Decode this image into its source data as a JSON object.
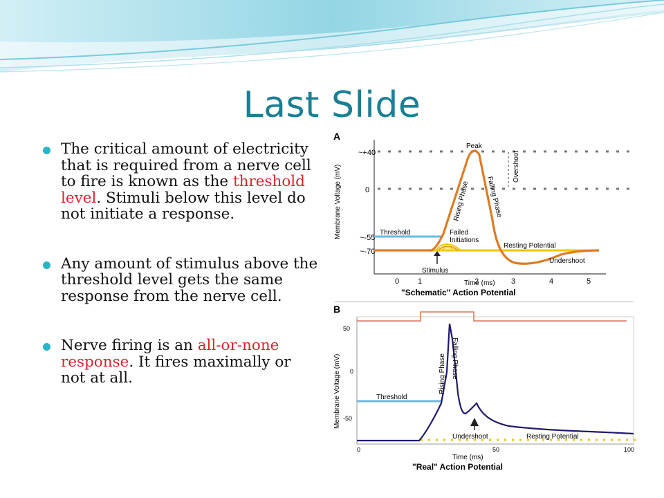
{
  "slide": {
    "title": "Last Slide"
  },
  "bullets": [
    {
      "parts": [
        {
          "t": "The critical amount of electricity that is required from a nerve cell to fire is known as the ",
          "hl": false
        },
        {
          "t": "threshold level",
          "hl": true
        },
        {
          "t": ". Stimuli below this level do not initiate a response.",
          "hl": false
        }
      ]
    },
    {
      "parts": [
        {
          "t": "Any amount of stimulus above the threshold level gets the same response from the nerve cell.",
          "hl": false
        }
      ]
    },
    {
      "parts": [
        {
          "t": "Nerve firing is an ",
          "hl": false
        },
        {
          "t": "all-or-none response",
          "hl": true
        },
        {
          "t": ".  It fires maximally or not at all.",
          "hl": false
        }
      ]
    }
  ],
  "colors": {
    "title": "#1a7f95",
    "bullet": "#2bb3c8",
    "highlight": "#e0212b",
    "schematic_trace": "#e07b20",
    "real_trace": "#1f1a6e",
    "threshold": "#6fb6e0",
    "resting": "#f2c40c"
  },
  "figureA": {
    "panel_label": "A",
    "ylabel": "Membrane Voltage (mV)",
    "xlabel": "Time (ms)",
    "caption": "\"Schematic\" Action Potential",
    "yticks": [
      "~+40",
      "0",
      "~-55",
      "~-70"
    ],
    "xticks": [
      "0",
      "1",
      "2",
      "3",
      "4",
      "5"
    ],
    "labels": {
      "peak": "Peak",
      "rising": "Rising Phase",
      "falling": "Falling Phase",
      "overshoot": "Overshoot",
      "threshold": "Threshold",
      "failed": "Failed",
      "initiations": "Initiations",
      "resting": "Resting Potential",
      "undershoot": "Undershoot",
      "stimulus": "Stimulus"
    }
  },
  "figureB": {
    "panel_label": "B",
    "ylabel": "Membrane Voltage (mV)",
    "xlabel": "Time (ms)",
    "caption": "\"Real\" Action Potential",
    "yticks": [
      "50",
      "0",
      "-50"
    ],
    "xticks": [
      "0",
      "50",
      "100"
    ],
    "labels": {
      "rising": "Rising Phase",
      "falling": "Falling Phase",
      "threshold": "Threshold",
      "undershoot": "Undershoot",
      "resting": "Resting Potential"
    }
  }
}
